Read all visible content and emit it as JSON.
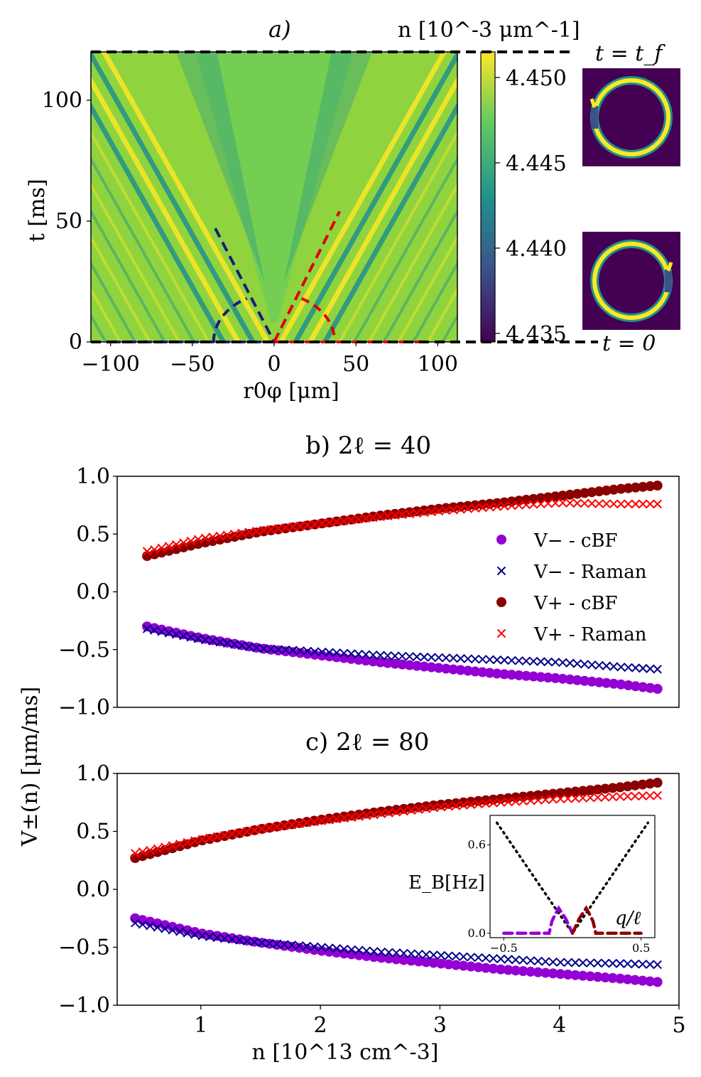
{
  "chart_data": [
    {
      "panel": "a",
      "type": "heatmap",
      "panel_label": "a)",
      "colorbar_label": "n [10^-3 μm^-1]",
      "colorbar_range": [
        4.4345,
        4.4515
      ],
      "colorbar_ticks": [
        "4.450",
        "4.445",
        "4.440",
        "4.435"
      ],
      "colorbar_tick_values": [
        4.45,
        4.445,
        4.44,
        4.435
      ],
      "colormap": [
        "#440154",
        "#3b528b",
        "#21918c",
        "#5ec962",
        "#fde725"
      ],
      "background_color": "#8fd43f",
      "xlabel": "r0φ [μm]",
      "ylabel": "t [ms]",
      "xlim": [
        -112,
        112
      ],
      "ylim": [
        0,
        120
      ],
      "xticks": [
        -100,
        -50,
        0,
        50,
        100
      ],
      "xtick_labels": [
        "−100",
        "−50",
        "0",
        "50",
        "100"
      ],
      "yticks": [
        0,
        50,
        100
      ],
      "ytick_labels": [
        "0",
        "50",
        "100"
      ],
      "final_time_label": "t = t_f",
      "initial_time_label": "t = 0",
      "inset_ring_colors": {
        "background": "#440154",
        "ring": "#fde725"
      },
      "guide_lines": [
        {
          "color": "#1b1b7a",
          "x": [
            -36,
            0
          ],
          "y": [
            47,
            0
          ]
        },
        {
          "color": "#e00000",
          "x": [
            0,
            40
          ],
          "y": [
            0,
            54
          ]
        },
        {
          "color": "#1b1b7a",
          "x": [
            -100,
            0
          ],
          "y": [
            0,
            0
          ]
        },
        {
          "color": "#e00000",
          "x": [
            0,
            95
          ],
          "y": [
            0,
            0
          ]
        }
      ]
    },
    {
      "panel": "b",
      "type": "scatter",
      "title": "b)  2ℓ = 40",
      "ylim": [
        -1.0,
        1.0
      ],
      "xlim": [
        0.3,
        5.0
      ],
      "yticks": [
        -1.0,
        -0.5,
        0.0,
        0.5,
        1.0
      ],
      "ytick_labels": [
        "−1.0",
        "−0.5",
        "0.0",
        "0.5",
        "1.0"
      ],
      "legend": [
        "V− - cBF",
        "V− - Raman",
        "V+ - cBF",
        "V+ - Raman"
      ],
      "legend_position": "right",
      "series": [
        {
          "name": "V− - cBF",
          "marker": "circle",
          "color": "#9400d3",
          "x": [
            0.55,
            1.0,
            1.5,
            2.0,
            2.5,
            3.0,
            3.5,
            4.0,
            4.5,
            4.82
          ],
          "y": [
            -0.3,
            -0.4,
            -0.49,
            -0.55,
            -0.61,
            -0.66,
            -0.71,
            -0.75,
            -0.8,
            -0.84
          ]
        },
        {
          "name": "V− - Raman",
          "marker": "x",
          "color": "#00008b",
          "x": [
            0.55,
            1.0,
            1.5,
            2.0,
            2.5,
            3.0,
            3.5,
            4.0,
            4.5,
            4.82
          ],
          "y": [
            -0.32,
            -0.41,
            -0.49,
            -0.52,
            -0.55,
            -0.57,
            -0.59,
            -0.61,
            -0.65,
            -0.67
          ]
        },
        {
          "name": "V+ - cBF",
          "marker": "circle",
          "color": "#8b0000",
          "x": [
            0.55,
            1.0,
            1.5,
            2.0,
            2.5,
            3.0,
            3.5,
            4.0,
            4.5,
            4.82
          ],
          "y": [
            0.31,
            0.42,
            0.52,
            0.59,
            0.66,
            0.72,
            0.77,
            0.83,
            0.89,
            0.92
          ]
        },
        {
          "name": "V+ - Raman",
          "marker": "x",
          "color": "#ff0000",
          "x": [
            0.55,
            1.0,
            1.5,
            2.0,
            2.5,
            3.0,
            3.5,
            4.0,
            4.5,
            4.82
          ],
          "y": [
            0.35,
            0.46,
            0.53,
            0.59,
            0.65,
            0.7,
            0.74,
            0.77,
            0.76,
            0.76
          ]
        }
      ]
    },
    {
      "panel": "c",
      "type": "scatter",
      "title": "c)  2ℓ = 80",
      "xlabel": "n [10^13 cm^-3]",
      "ylabel": "V±(n) [μm/ms]",
      "ylim": [
        -1.0,
        1.0
      ],
      "xlim": [
        0.3,
        5.0
      ],
      "xticks": [
        1,
        2,
        3,
        4,
        5
      ],
      "xtick_labels": [
        "1",
        "2",
        "3",
        "4",
        "5"
      ],
      "yticks": [
        -1.0,
        -0.5,
        0.0,
        0.5,
        1.0
      ],
      "ytick_labels": [
        "−1.0",
        "−0.5",
        "0.0",
        "0.5",
        "1.0"
      ],
      "series": [
        {
          "name": "V− - cBF",
          "marker": "circle",
          "color": "#9400d3",
          "x": [
            0.45,
            1.0,
            1.5,
            2.0,
            2.5,
            3.0,
            3.5,
            4.0,
            4.5,
            4.82
          ],
          "y": [
            -0.25,
            -0.38,
            -0.46,
            -0.53,
            -0.59,
            -0.64,
            -0.69,
            -0.73,
            -0.77,
            -0.8
          ]
        },
        {
          "name": "V− - Raman",
          "marker": "x",
          "color": "#00008b",
          "x": [
            0.45,
            1.0,
            1.5,
            2.0,
            2.5,
            3.0,
            3.5,
            4.0,
            4.5,
            4.82
          ],
          "y": [
            -0.29,
            -0.4,
            -0.46,
            -0.5,
            -0.54,
            -0.57,
            -0.6,
            -0.63,
            -0.64,
            -0.65
          ]
        },
        {
          "name": "V+ - cBF",
          "marker": "circle",
          "color": "#8b0000",
          "x": [
            0.45,
            1.0,
            1.5,
            2.0,
            2.5,
            3.0,
            3.5,
            4.0,
            4.5,
            4.82
          ],
          "y": [
            0.27,
            0.42,
            0.52,
            0.6,
            0.67,
            0.73,
            0.78,
            0.83,
            0.88,
            0.92
          ]
        },
        {
          "name": "V+ - Raman",
          "marker": "x",
          "color": "#ff0000",
          "x": [
            0.45,
            1.0,
            1.5,
            2.0,
            2.5,
            3.0,
            3.5,
            4.0,
            4.5,
            4.82
          ],
          "y": [
            0.31,
            0.43,
            0.52,
            0.59,
            0.65,
            0.71,
            0.75,
            0.78,
            0.8,
            0.81
          ]
        }
      ],
      "inset": {
        "xlabel": "q/ℓ",
        "ylabel": "E_B[Hz]",
        "xlim": [
          -0.6,
          0.6
        ],
        "ylim": [
          -0.03,
          0.8
        ],
        "xticks": [
          -0.5,
          0.5
        ],
        "xtick_labels": [
          "−0.5",
          "0.5"
        ],
        "yticks": [
          0.0,
          0.6
        ],
        "ytick_labels": [
          "0.0",
          "0.6"
        ],
        "series": [
          {
            "name": "dispersion",
            "style": "dotted",
            "color": "#000000",
            "x": [
              -0.55,
              0.0,
              0.55
            ],
            "y": [
              0.75,
              0.0,
              0.75
            ]
          },
          {
            "name": "left",
            "style": "dashed",
            "color": "#9400d3",
            "x": [
              -0.5,
              -0.17,
              -0.15,
              -0.13,
              -0.1,
              -0.05,
              0.0
            ],
            "y": [
              0.0,
              0.0,
              0.08,
              0.12,
              0.17,
              0.1,
              0.0
            ]
          },
          {
            "name": "right",
            "style": "dashed",
            "color": "#8b0000",
            "x": [
              0.0,
              0.05,
              0.1,
              0.13,
              0.15,
              0.17,
              0.5
            ],
            "y": [
              0.0,
              0.1,
              0.17,
              0.12,
              0.08,
              0.0,
              0.0
            ]
          }
        ]
      }
    }
  ]
}
